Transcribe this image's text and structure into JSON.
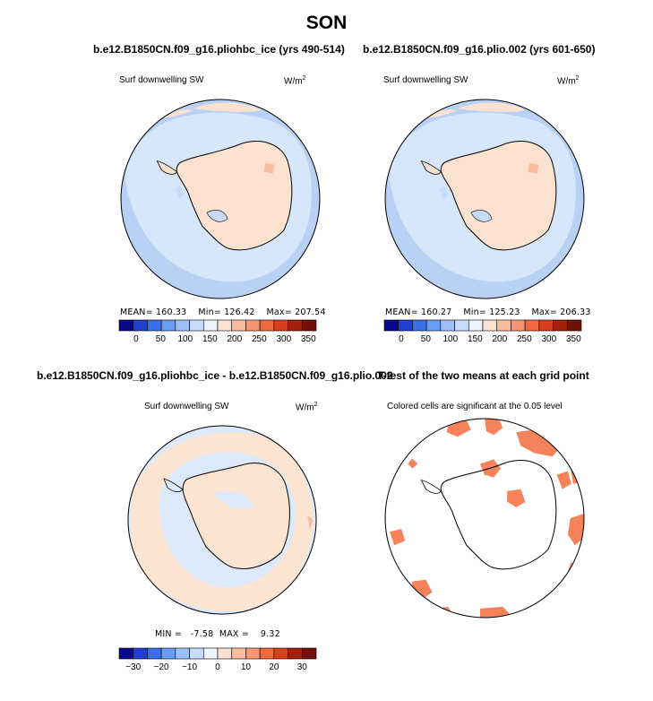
{
  "title": "SON",
  "panels": [
    {
      "title": "b.e12.B1850CN.f09_g16.pliohbc_ice (yrs 490-514)",
      "variable": "Surf downwelling SW",
      "units": "W/m",
      "units_exp": "2",
      "stats": {
        "mean": "MEAN= 160.33",
        "min": "Min= 126.42",
        "max": "Max= 207.54"
      }
    },
    {
      "title": "b.e12.B1850CN.f09_g16.plio.002 (yrs 601-650)",
      "variable": "Surf downwelling SW",
      "units": "W/m",
      "units_exp": "2",
      "stats": {
        "mean": "MEAN= 160.27",
        "min": "Min= 125.23",
        "max": "Max= 206.33"
      }
    },
    {
      "title": "b.e12.B1850CN.f09_g16.pliohbc_ice - b.e12.B1850CN.f09_g16.plio.002",
      "variable": "Surf downwelling SW",
      "units": "W/m",
      "units_exp": "2",
      "stats": {
        "min": "MIN =",
        "min_value": "-7.58",
        "max": "MAX =",
        "max_value": "9.32"
      }
    },
    {
      "title": "T-test of the two means at each grid point",
      "variable": "Colored cells are significant at the 0.05 level"
    }
  ],
  "colorbar_abs": {
    "colors": [
      "#08088c",
      "#1f3fd3",
      "#3a6ee6",
      "#6a9cf1",
      "#9cc0f6",
      "#c7dcfb",
      "#eef4fd",
      "#fce2d2",
      "#f9bd9e",
      "#f69572",
      "#f0683f",
      "#d6401c",
      "#a4200a",
      "#701206"
    ],
    "labels": [
      "0",
      "50",
      "100",
      "150",
      "200",
      "250",
      "300",
      "350"
    ]
  },
  "colorbar_diff": {
    "colors": [
      "#08088c",
      "#1f3fd3",
      "#3a6ee6",
      "#6a9cf1",
      "#9cc0f6",
      "#c7dcfb",
      "#eef4fd",
      "#fce2d2",
      "#f9bd9e",
      "#f69572",
      "#f0683f",
      "#d6401c",
      "#a4200a",
      "#701206"
    ],
    "labels": [
      "−30",
      "−20",
      "−10",
      "0",
      "10",
      "20",
      "30"
    ]
  },
  "chart_data": [
    {
      "type": "heatmap",
      "projection": "south-polar stereographic",
      "variable": "Surf downwelling SW",
      "units": "W/m2",
      "mean": 160.33,
      "min": 126.42,
      "max": 207.54,
      "contour_levels": [
        0,
        50,
        100,
        150,
        200,
        250,
        300,
        350
      ]
    },
    {
      "type": "heatmap",
      "projection": "south-polar stereographic",
      "variable": "Surf downwelling SW",
      "units": "W/m2",
      "mean": 160.27,
      "min": 125.23,
      "max": 206.33,
      "contour_levels": [
        0,
        50,
        100,
        150,
        200,
        250,
        300,
        350
      ]
    },
    {
      "type": "heatmap",
      "projection": "south-polar stereographic",
      "variable": "Surf downwelling SW",
      "units": "W/m2",
      "min": -7.58,
      "max": 9.32,
      "contour_levels": [
        -30,
        -20,
        -10,
        0,
        10,
        20,
        30
      ]
    },
    {
      "type": "heatmap",
      "projection": "south-polar stereographic",
      "significance_level": 0.05
    }
  ],
  "map_colors": {
    "outer_ring": "#b9d1f4",
    "inner_ocean": "#d7e7fb",
    "land_warm": "#fbe2d0",
    "diff_warm": "#fbe4d2",
    "diff_cool": "#dce9fa",
    "significant": "#f5825a"
  }
}
